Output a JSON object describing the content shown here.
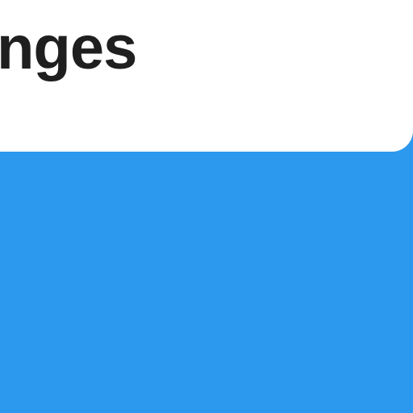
{
  "header": {
    "title_fragment": "nges"
  },
  "colors": {
    "accent_blue": "#2d99ee",
    "card_white": "#ffffff",
    "text_dark": "#1f1f1f"
  }
}
